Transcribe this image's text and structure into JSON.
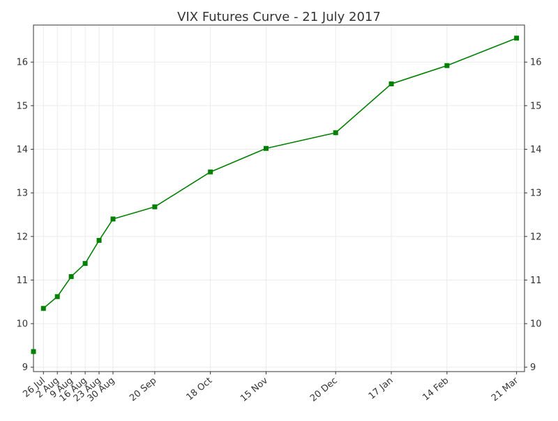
{
  "chart_data": {
    "type": "line",
    "title": "VIX Futures Curve - 21 July 2017",
    "xlabel": "",
    "ylabel": "",
    "x_tick_labels": [
      "26 Jul",
      "2 Aug",
      "9 Aug",
      "16 Aug",
      "23 Aug",
      "30 Aug",
      "20 Sep",
      "18 Oct",
      "15 Nov",
      "20 Dec",
      "17 Jan",
      "14 Feb",
      "21 Mar"
    ],
    "x_ticks": [
      "2017-07-26",
      "2017-08-02",
      "2017-08-09",
      "2017-08-16",
      "2017-08-23",
      "2017-08-30",
      "2017-09-20",
      "2017-10-18",
      "2017-11-15",
      "2017-12-20",
      "2018-01-17",
      "2018-02-14",
      "2018-03-21"
    ],
    "xlim": [
      "2017-07-21",
      "2018-03-25"
    ],
    "y_ticks": [
      9,
      10,
      11,
      12,
      13,
      14,
      15,
      16
    ],
    "ylim": [
      8.9,
      16.85
    ],
    "grid": true,
    "right_axis_mirror": true,
    "color": "#008000",
    "spot": {
      "x": "2017-07-21",
      "y": 9.36
    },
    "series": [
      {
        "x": [
          "2017-07-26",
          "2017-08-02",
          "2017-08-09",
          "2017-08-16",
          "2017-08-23",
          "2017-08-30",
          "2017-09-20",
          "2017-10-18",
          "2017-11-15",
          "2017-12-20",
          "2018-01-17",
          "2018-02-14",
          "2018-03-21"
        ],
        "values": [
          10.35,
          10.62,
          11.08,
          11.38,
          11.91,
          12.4,
          12.68,
          13.48,
          14.02,
          14.38,
          15.5,
          15.92,
          16.55
        ]
      }
    ]
  }
}
